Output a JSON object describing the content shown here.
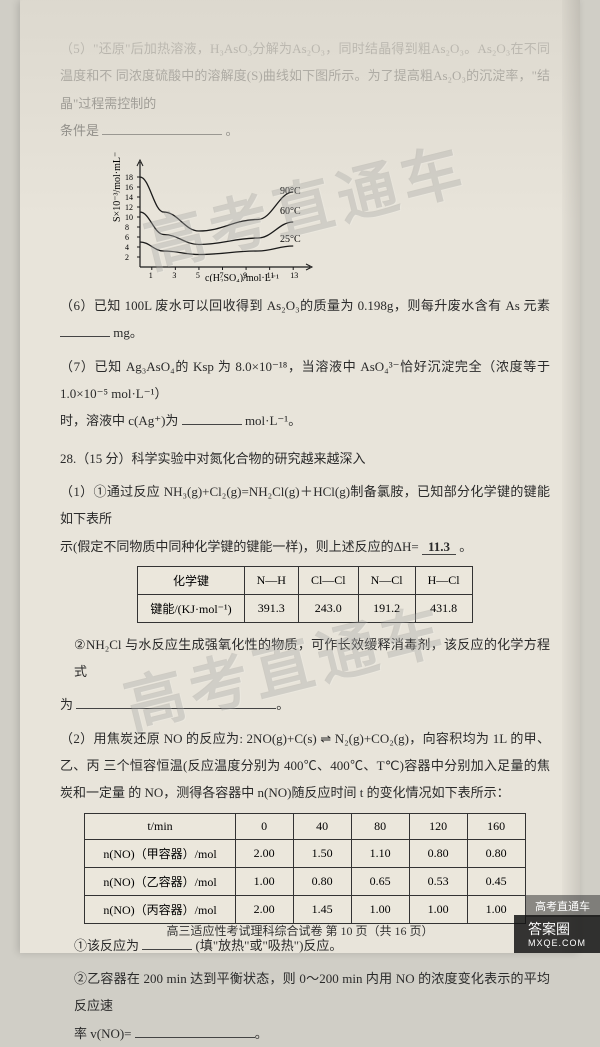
{
  "q5": {
    "text_l1": "（5）\"还原\"后加热溶液，H₃AsO₃分解为As₂O₃，同时结晶得到粗As₂O₃。As₂O₃在不同温度和不",
    "text_l2": "同浓度硫酸中的溶解度(S)曲线如下图所示。为了提高粗As₂O₃的沉淀率，\"结晶\"过程需控制的",
    "text_l3": "条件是",
    "period": "。"
  },
  "chart": {
    "y_label": "S×10⁻³/mol·mL⁻¹",
    "x_label": "c(H₂SO₄)/mol·L⁻¹",
    "y_ticks": [
      "2",
      "4",
      "6",
      "8",
      "10",
      "12",
      "14",
      "16",
      "18"
    ],
    "x_ticks": [
      "1",
      "3",
      "5",
      "7",
      "9",
      "11",
      "13"
    ],
    "curve_labels": [
      "90°C",
      "60°C",
      "25°C"
    ],
    "curves": [
      {
        "temp": "90",
        "points": [
          [
            0,
            18
          ],
          [
            2,
            11
          ],
          [
            5,
            7.2
          ],
          [
            10,
            9.5
          ],
          [
            13,
            15
          ]
        ],
        "color": "#1a1a1a"
      },
      {
        "temp": "60",
        "points": [
          [
            0,
            11
          ],
          [
            2,
            6.5
          ],
          [
            5,
            4.5
          ],
          [
            10,
            5.8
          ],
          [
            13,
            9
          ]
        ],
        "color": "#1a1a1a"
      },
      {
        "temp": "25",
        "points": [
          [
            0,
            5
          ],
          [
            2,
            3.2
          ],
          [
            5,
            2.5
          ],
          [
            10,
            3.2
          ],
          [
            13,
            4.2
          ]
        ],
        "color": "#1a1a1a"
      }
    ],
    "axis_color": "#1a1a1a"
  },
  "q6": {
    "text": "（6）已知 100L 废水可以回收得到 As₂O₃的质量为 0.198g，则每升废水含有 As 元素",
    "unit": "mg。"
  },
  "q7": {
    "text_a": "（7）已知 Ag₃AsO₄的 Ksp 为 8.0×10⁻¹⁸，当溶液中 AsO₄³⁻恰好沉淀完全（浓度等于 1.0×10⁻⁵ mol·L⁻¹）",
    "text_b": "时，溶液中 c(Ag⁺)为",
    "unit": "mol·L⁻¹。"
  },
  "q28": {
    "intro": "28.（15 分）科学实验中对氮化合物的研究越来越深入",
    "p1_l1": "（1）①通过反应 NH₃(g)+Cl₂(g)=NH₂Cl(g)＋HCl(g)制备氯胺，已知部分化学键的键能如下表所",
    "p1_l2": "示(假定不同物质中同种化学键的键能一样)，则上述反应的ΔH=",
    "hand_val": "11.3",
    "period": "。",
    "bond_table": {
      "header": [
        "化学键",
        "N—H",
        "Cl—Cl",
        "N—Cl",
        "H—Cl"
      ],
      "row_label": "键能/(KJ·mol⁻¹)",
      "values": [
        "391.3",
        "243.0",
        "191.2",
        "431.8"
      ]
    },
    "p1_2": "②NH₂Cl 与水反应生成强氧化性的物质，可作长效缓释消毒剂，该反应的化学方程式",
    "p1_2b": "为",
    "p2_l1": "（2）用焦炭还原 NO 的反应为: 2NO(g)+C(s) ⇌ N₂(g)+CO₂(g)，向容积均为 1L 的甲、乙、丙",
    "p2_l2": "三个恒容恒温(反应温度分别为 400℃、400℃、T℃)容器中分别加入足量的焦炭和一定量",
    "p2_l3": "的 NO，测得各容器中 n(NO)随反应时间 t 的变化情况如下表所示：",
    "data_table": {
      "header": [
        "t/min",
        "0",
        "40",
        "80",
        "120",
        "160"
      ],
      "rows": [
        {
          "label": "n(NO)（甲容器）/mol",
          "vals": [
            "2.00",
            "1.50",
            "1.10",
            "0.80",
            "0.80"
          ]
        },
        {
          "label": "n(NO)（乙容器）/mol",
          "vals": [
            "1.00",
            "0.80",
            "0.65",
            "0.53",
            "0.45"
          ]
        },
        {
          "label": "n(NO)（丙容器）/mol",
          "vals": [
            "2.00",
            "1.45",
            "1.00",
            "1.00",
            "1.00"
          ]
        }
      ]
    },
    "p2_q1a": "①该反应为",
    "p2_q1b": "(填\"放热\"或\"吸热\")反应。",
    "p2_q2a": "②乙容器在 200 min 达到平衡状态，则 0～200 min 内用 NO 的浓度变化表示的平均反应速",
    "p2_q2b": "率 v(NO)="
  },
  "footer": "高三适应性考试理科综合试卷  第 10 页（共 16 页）",
  "watermark": "高考直通车",
  "badge": {
    "main": "答案圈",
    "sub": "MXQE.COM"
  },
  "badge2": "高考直通车"
}
